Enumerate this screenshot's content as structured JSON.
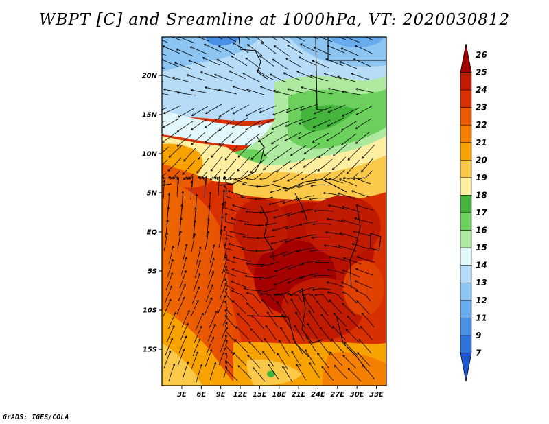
{
  "title": "WBPT [C] and Sreamline at 1000hPa, VT: 2020030812",
  "footer": "GrADS: IGES/COLA",
  "map": {
    "lat_labels": [
      {
        "text": "20N",
        "lat": 20
      },
      {
        "text": "15N",
        "lat": 15
      },
      {
        "text": "10N",
        "lat": 10
      },
      {
        "text": "5N",
        "lat": 5
      },
      {
        "text": "EQ",
        "lat": 0
      },
      {
        "text": "5S",
        "lat": -5
      },
      {
        "text": "10S",
        "lat": -10
      },
      {
        "text": "15S",
        "lat": -15
      }
    ],
    "lon_labels": [
      {
        "text": "3E",
        "lon": 3
      },
      {
        "text": "6E",
        "lon": 6
      },
      {
        "text": "9E",
        "lon": 9
      },
      {
        "text": "12E",
        "lon": 12
      },
      {
        "text": "15E",
        "lon": 15
      },
      {
        "text": "18E",
        "lon": 18
      },
      {
        "text": "21E",
        "lon": 21
      },
      {
        "text": "24E",
        "lon": 24
      },
      {
        "text": "27E",
        "lon": 27
      },
      {
        "text": "30E",
        "lon": 30
      },
      {
        "text": "33E",
        "lon": 33
      }
    ]
  },
  "colorbar": {
    "levels": [
      {
        "label": "26",
        "color": "#a50000"
      },
      {
        "label": "25",
        "color": "#c01a00"
      },
      {
        "label": "24",
        "color": "#d83000"
      },
      {
        "label": "23",
        "color": "#ea5a00"
      },
      {
        "label": "22",
        "color": "#f47f00"
      },
      {
        "label": "21",
        "color": "#f8a200"
      },
      {
        "label": "20",
        "color": "#fbc94a"
      },
      {
        "label": "19",
        "color": "#fdeea0"
      },
      {
        "label": "18",
        "color": "#44b43c"
      },
      {
        "label": "17",
        "color": "#6cd05c"
      },
      {
        "label": "16",
        "color": "#aee9a0"
      },
      {
        "label": "15",
        "color": "#e2f7fb"
      },
      {
        "label": "14",
        "color": "#b6dcf7"
      },
      {
        "label": "13",
        "color": "#8cc4f2"
      },
      {
        "label": "12",
        "color": "#68acee"
      },
      {
        "label": "11",
        "color": "#4a90e6"
      },
      {
        "label": "9",
        "color": "#2e74dc"
      },
      {
        "label": "7",
        "color": "#1c58d0"
      }
    ]
  }
}
